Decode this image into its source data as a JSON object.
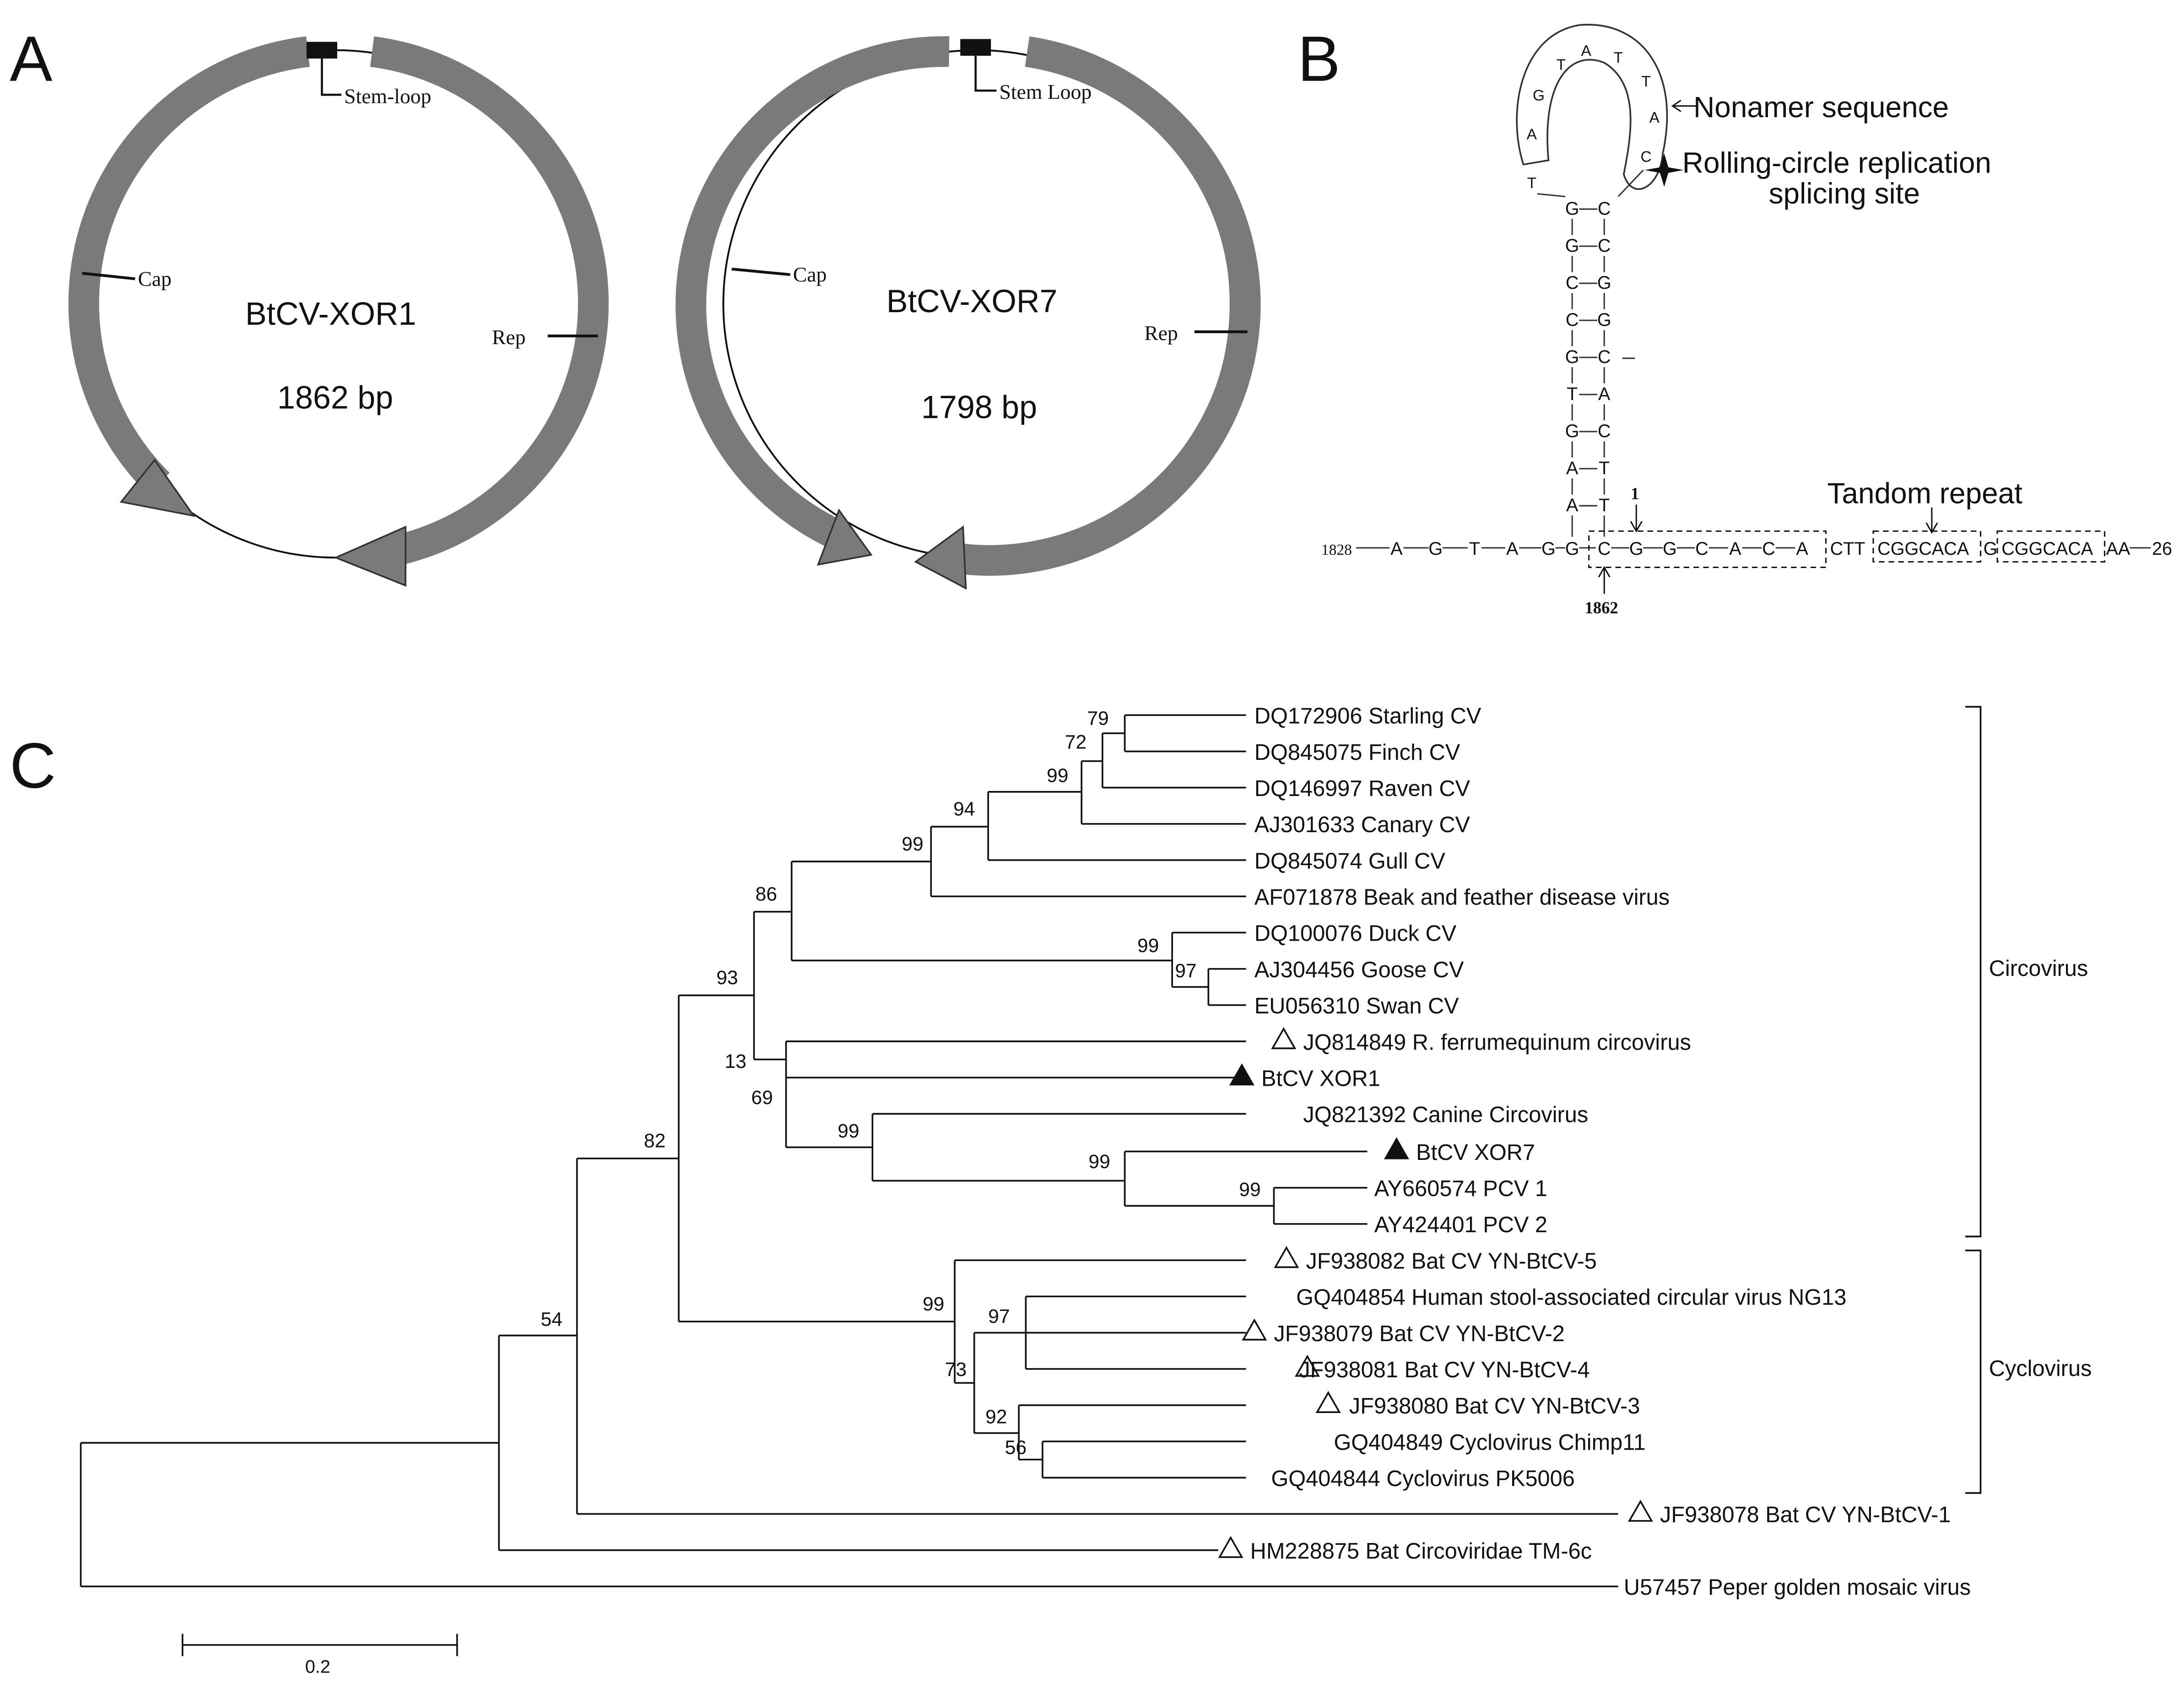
{
  "panels": {
    "a": "A",
    "b": "B",
    "c": "C"
  },
  "panel_a": {
    "left": {
      "name": "BtCV-XOR1",
      "length": "1862 bp",
      "stem_label": "Stem-loop",
      "cap_label": "Cap",
      "rep_label": "Rep"
    },
    "right": {
      "name": "BtCV-XOR7",
      "length": "1798 bp",
      "stem_label": "Stem Loop",
      "cap_label": "Cap",
      "rep_label": "Rep"
    }
  },
  "panel_b": {
    "loop": [
      "T",
      "A",
      "G",
      "T",
      "A",
      "T",
      "T",
      "A",
      "C"
    ],
    "stem_left": [
      "G",
      "G",
      "C",
      "C",
      "G",
      "T",
      "G",
      "A",
      "A"
    ],
    "stem_right": [
      "C",
      "C",
      "G",
      "G",
      "C",
      "A",
      "C",
      "T",
      "T"
    ],
    "base_left": [
      "1828",
      "A",
      "G",
      "T",
      "A",
      "G",
      "G"
    ],
    "box_bases": [
      "C",
      "G",
      "G",
      "C",
      "A",
      "C",
      "A"
    ],
    "after_box": "CTT",
    "repeat_1": "CGGCACA",
    "repeat_gap": "G",
    "repeat_2": "CGGCACA",
    "tail": "AA",
    "end_number": "26",
    "nonamer_label": "Nonamer sequence",
    "splicing_line1": "Rolling-circle replication",
    "splicing_line2": "splicing site",
    "tandem_label": "Tandom repeat",
    "pos_1": "1",
    "pos_1862": "1862"
  },
  "panel_c": {
    "taxa": [
      "DQ172906 Starling CV",
      "DQ845075 Finch CV",
      "DQ146997 Raven CV",
      "AJ301633 Canary CV",
      "DQ845074 Gull CV",
      "AF071878 Beak and feather disease virus",
      "DQ100076 Duck CV",
      "AJ304456 Goose CV",
      "EU056310 Swan CV",
      "JQ814849 R. ferrumequinum circovirus",
      "BtCV XOR1",
      "JQ821392 Canine Circovirus",
      "BtCV XOR7",
      "AY660574 PCV 1",
      "AY424401 PCV 2",
      "JF938082 Bat CV YN-BtCV-5",
      "GQ404854 Human stool-associated circular virus NG13",
      "JF938079 Bat CV YN-BtCV-2",
      "JF938081 Bat CV YN-BtCV-4",
      "JF938080 Bat CV YN-BtCV-3",
      "GQ404849 Cyclovirus Chimp11",
      "GQ404844 Cyclovirus PK5006",
      "JF938078 Bat CV YN-BtCV-1",
      "HM228875 Bat Circoviridae TM-6c",
      "U57457 Peper golden mosaic virus"
    ],
    "bootstraps": [
      "79",
      "72",
      "99",
      "94",
      "99",
      "86",
      "99",
      "97",
      "93",
      "13",
      "69",
      "99",
      "99",
      "99",
      "82",
      "99",
      "97",
      "73",
      "92",
      "56",
      "54"
    ],
    "groups": [
      "Circovirus",
      "Cyclovirus"
    ],
    "scale_label": "0.2"
  }
}
